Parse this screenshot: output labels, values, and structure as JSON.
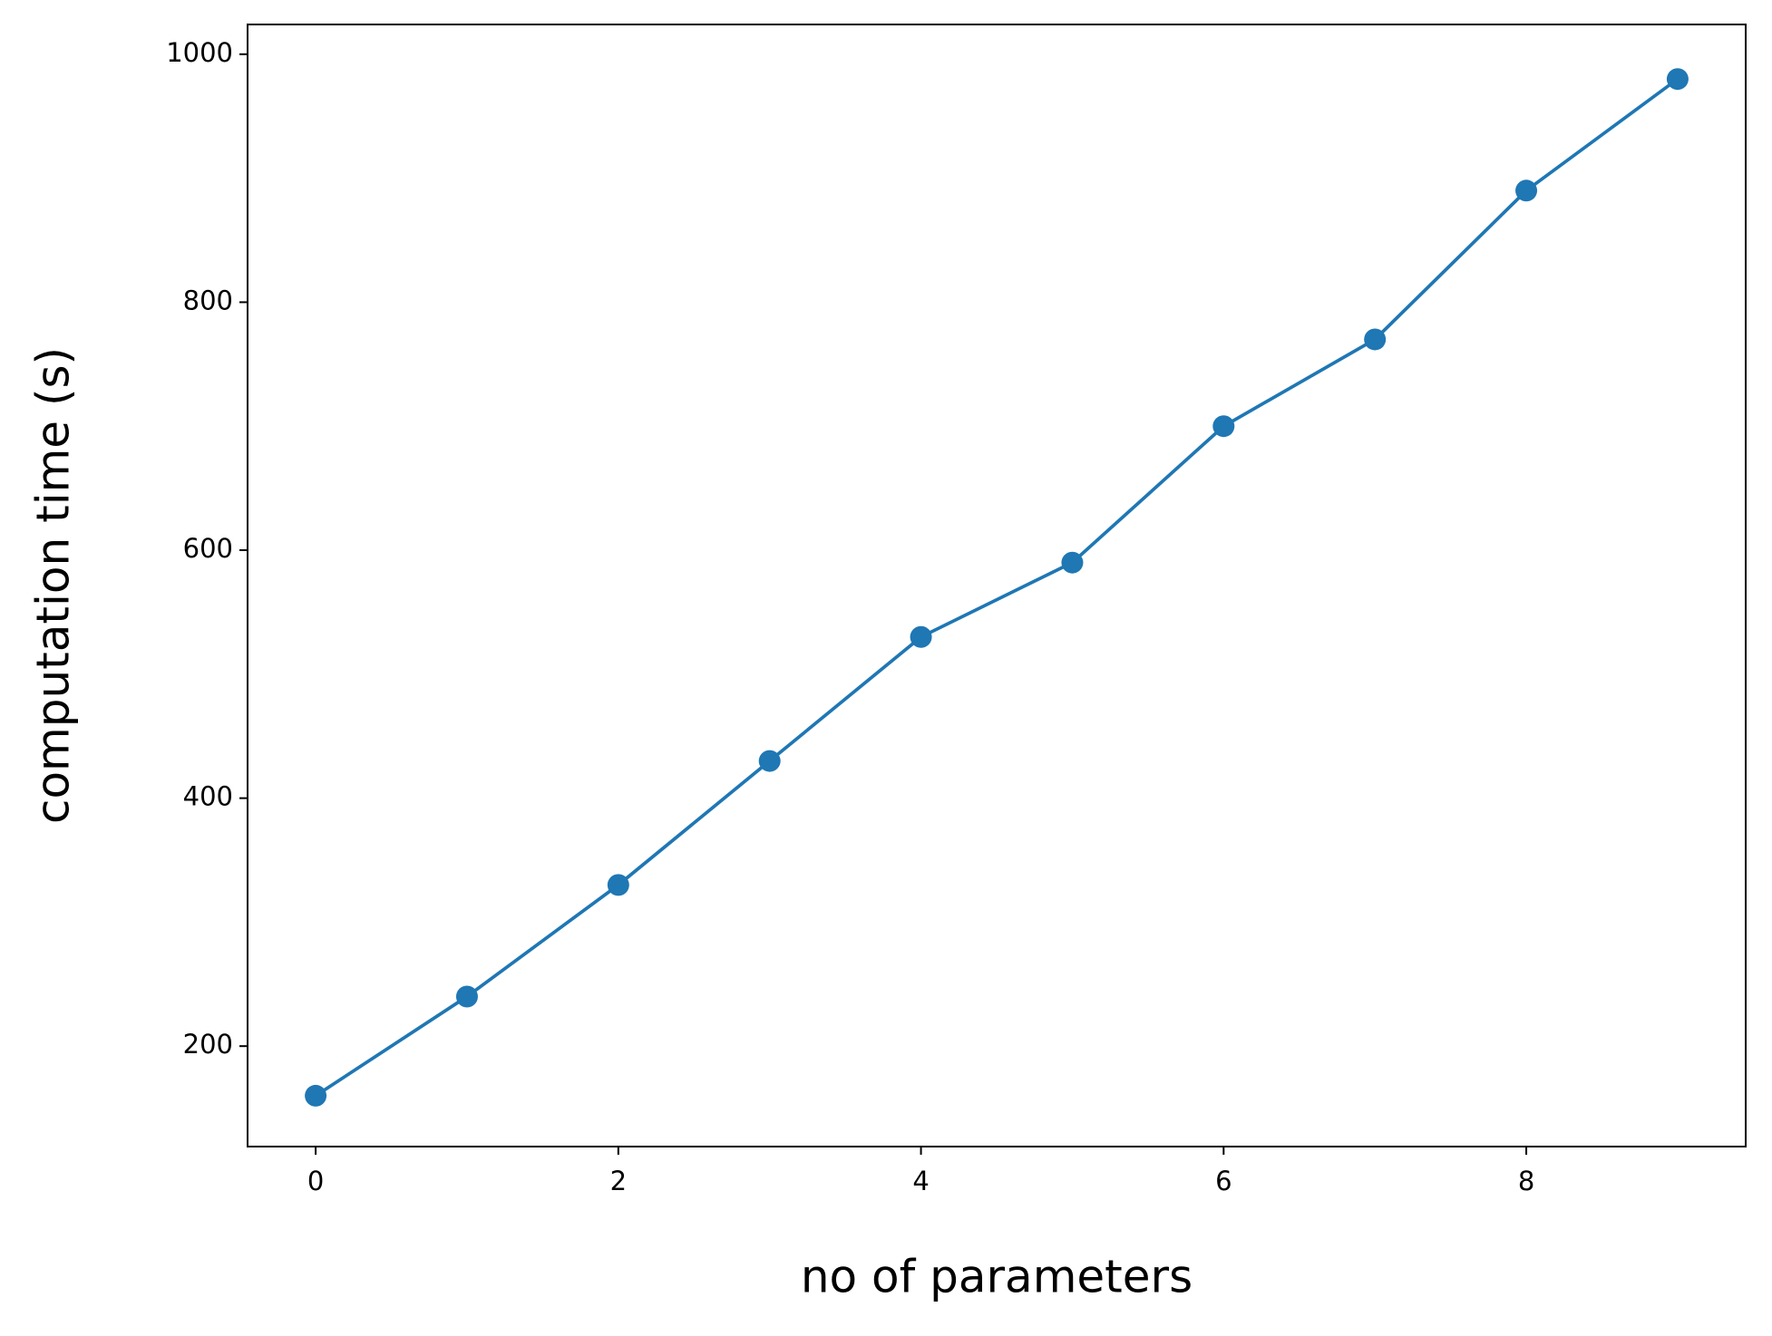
{
  "chart_data": {
    "type": "line",
    "x_label": "no of parameters",
    "y_label": "computation time (s)",
    "x": [
      0,
      1,
      2,
      3,
      4,
      5,
      6,
      7,
      8,
      9
    ],
    "series": [
      {
        "color": "#1f77b4",
        "values": [
          160,
          240,
          330,
          430,
          530,
          590,
          700,
          770,
          890,
          980
        ]
      }
    ],
    "markers": true,
    "xlim": [
      -0.45,
      9.45
    ],
    "xticks": [
      0,
      2,
      4,
      6,
      8
    ],
    "ylim": [
      119,
      1024
    ],
    "yticks": [
      200,
      400,
      600,
      800,
      1000
    ],
    "grid": false
  }
}
